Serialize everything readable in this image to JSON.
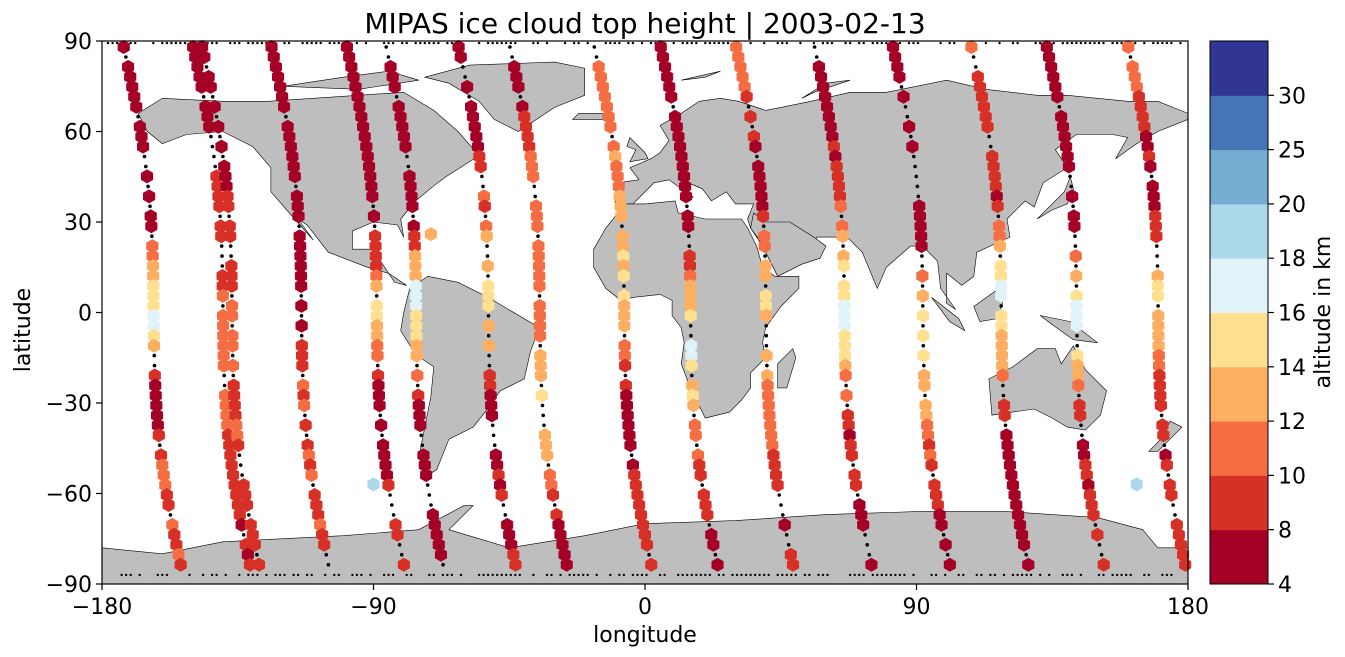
{
  "chart_data": {
    "type": "scatter",
    "title": "MIPAS ice cloud top height | 2003-02-13",
    "xlabel": "longitude",
    "ylabel": "latitude",
    "xlim": [
      -180,
      180
    ],
    "ylim": [
      -90,
      90
    ],
    "xticks": [
      -180,
      -90,
      0,
      90,
      180
    ],
    "xtick_labels": [
      "−180",
      "−90",
      "0",
      "90",
      "180"
    ],
    "yticks": [
      -90,
      -60,
      -30,
      0,
      30,
      60,
      90
    ],
    "ytick_labels": [
      "−90",
      "−60",
      "−30",
      "0",
      "30",
      "60",
      "90"
    ],
    "grid": false,
    "background_map": "world coastlines, land in gray",
    "colorbar": {
      "label": "altitude in km",
      "position": "right",
      "bounds": [
        4,
        8,
        10,
        12,
        14,
        16,
        18,
        20,
        25,
        30
      ],
      "tick_labels": [
        "4",
        "8",
        "10",
        "12",
        "14",
        "16",
        "18",
        "20",
        "25",
        "30"
      ],
      "colors": [
        "#a50026",
        "#d73027",
        "#f46d43",
        "#fdae61",
        "#fee090",
        "#e0f3f8",
        "#abd9e9",
        "#74add1",
        "#4575b4",
        "#313695"
      ]
    },
    "colors": {
      "land": "#bebebe",
      "coast": "#000000",
      "clear_sky_marker": "#000000"
    },
    "marker": "hexagon",
    "orbits": [
      {
        "lon_n": -173,
        "lon_s": -153,
        "vals": [
          {
            "lat": 30,
            "h": 7
          },
          {
            "lat": 10,
            "h": 15
          },
          {
            "lat": -5,
            "h": 17
          },
          {
            "lat": -25,
            "h": 6
          },
          {
            "lat": -55,
            "h": 10
          }
        ]
      },
      {
        "lon_n": -150,
        "lon_s": -130,
        "vals": [
          {
            "lat": 70,
            "h": 6
          },
          {
            "lat": 40,
            "h": 9
          },
          {
            "lat": 10,
            "h": 10
          },
          {
            "lat": -20,
            "h": 12
          },
          {
            "lat": -60,
            "h": 8
          }
        ]
      },
      {
        "lon_n": -147,
        "lon_s": -127,
        "vals": [
          {
            "lat": 80,
            "h": 6
          },
          {
            "lat": 50,
            "h": 8
          },
          {
            "lat": 20,
            "h": 9
          },
          {
            "lat": -10,
            "h": 11
          },
          {
            "lat": -50,
            "h": 9
          }
        ]
      },
      {
        "lon_n": -124,
        "lon_s": -104,
        "vals": [
          {
            "lat": 75,
            "h": 6
          },
          {
            "lat": 45,
            "h": 7
          },
          {
            "lat": 15,
            "h": 6
          },
          {
            "lat": -15,
            "h": 9
          },
          {
            "lat": -45,
            "h": 10
          }
        ]
      },
      {
        "lon_n": -99,
        "lon_s": -79,
        "vals": [
          {
            "lat": 50,
            "h": 6
          },
          {
            "lat": 20,
            "h": 9
          },
          {
            "lat": 0,
            "h": 15
          },
          {
            "lat": -30,
            "h": 6
          },
          {
            "lat": -70,
            "h": 9
          }
        ]
      },
      {
        "lon_n": -86,
        "lon_s": -66,
        "vals": [
          {
            "lat": 70,
            "h": 6
          },
          {
            "lat": 30,
            "h": 7
          },
          {
            "lat": 5,
            "h": 17
          },
          {
            "lat": -30,
            "h": 8
          },
          {
            "lat": -75,
            "h": 6
          }
        ]
      },
      {
        "lon_n": -62,
        "lon_s": -42,
        "vals": [
          {
            "lat": 60,
            "h": 7
          },
          {
            "lat": 30,
            "h": 11
          },
          {
            "lat": 0,
            "h": 15
          },
          {
            "lat": -30,
            "h": 7
          },
          {
            "lat": -70,
            "h": 8
          }
        ]
      },
      {
        "lon_n": -45,
        "lon_s": -25,
        "vals": [
          {
            "lat": 80,
            "h": 6
          },
          {
            "lat": 40,
            "h": 12
          },
          {
            "lat": 5,
            "h": 10
          },
          {
            "lat": -35,
            "h": 15
          },
          {
            "lat": -75,
            "h": 7
          }
        ]
      },
      {
        "lon_n": -17,
        "lon_s": 3,
        "vals": [
          {
            "lat": 75,
            "h": 11
          },
          {
            "lat": 45,
            "h": 12
          },
          {
            "lat": 5,
            "h": 15
          },
          {
            "lat": -35,
            "h": 6
          },
          {
            "lat": -70,
            "h": 9
          }
        ]
      },
      {
        "lon_n": 5,
        "lon_s": 25,
        "vals": [
          {
            "lat": 65,
            "h": 6
          },
          {
            "lat": 25,
            "h": 7
          },
          {
            "lat": -10,
            "h": 17
          },
          {
            "lat": -50,
            "h": 10
          },
          {
            "lat": -80,
            "h": 6
          }
        ]
      },
      {
        "lon_n": 30,
        "lon_s": 50,
        "vals": [
          {
            "lat": 85,
            "h": 11
          },
          {
            "lat": 45,
            "h": 6
          },
          {
            "lat": 5,
            "h": 15
          },
          {
            "lat": -40,
            "h": 10
          },
          {
            "lat": -75,
            "h": 8
          }
        ]
      },
      {
        "lon_n": 56,
        "lon_s": 76,
        "vals": [
          {
            "lat": 70,
            "h": 6
          },
          {
            "lat": 35,
            "h": 10
          },
          {
            "lat": 0,
            "h": 17
          },
          {
            "lat": -35,
            "h": 9
          },
          {
            "lat": -70,
            "h": 7
          }
        ]
      },
      {
        "lon_n": 82,
        "lon_s": 102,
        "vals": [
          {
            "lat": 60,
            "h": 6
          },
          {
            "lat": 25,
            "h": 6
          },
          {
            "lat": -5,
            "h": 17
          },
          {
            "lat": -45,
            "h": 10
          },
          {
            "lat": -80,
            "h": 6
          }
        ]
      },
      {
        "lon_n": 108,
        "lon_s": 128,
        "vals": [
          {
            "lat": 75,
            "h": 10
          },
          {
            "lat": 40,
            "h": 8
          },
          {
            "lat": 5,
            "h": 17
          },
          {
            "lat": -40,
            "h": 7
          },
          {
            "lat": -75,
            "h": 6
          }
        ]
      },
      {
        "lon_n": 133,
        "lon_s": 153,
        "vals": [
          {
            "lat": 65,
            "h": 6
          },
          {
            "lat": 30,
            "h": 7
          },
          {
            "lat": 0,
            "h": 17
          },
          {
            "lat": -40,
            "h": 8
          },
          {
            "lat": -75,
            "h": 9
          }
        ]
      },
      {
        "lon_n": 160,
        "lon_s": 180,
        "vals": [
          {
            "lat": 80,
            "h": 11
          },
          {
            "lat": 40,
            "h": 6
          },
          {
            "lat": 5,
            "h": 15
          },
          {
            "lat": -35,
            "h": 8
          },
          {
            "lat": -70,
            "h": 9
          }
        ]
      }
    ],
    "isolated_points": [
      {
        "lon": -90,
        "lat": -57,
        "h": 19
      },
      {
        "lon": 163,
        "lat": -57,
        "h": 19
      },
      {
        "lon": -71,
        "lat": 26,
        "h": 13
      }
    ]
  }
}
